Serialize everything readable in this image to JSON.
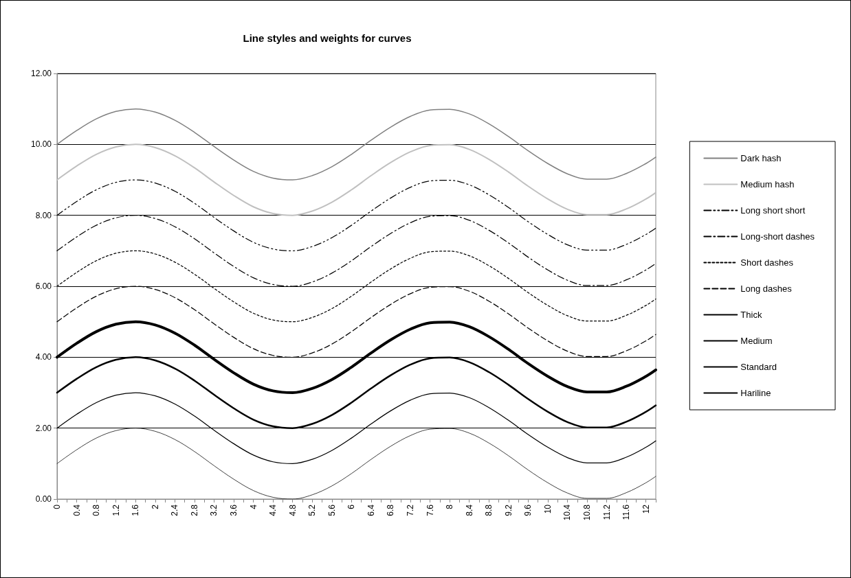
{
  "chart_data": {
    "type": "line",
    "title": "Line styles and weights for curves",
    "x": [
      0,
      0.4,
      0.8,
      1.2,
      1.6,
      2,
      2.4,
      2.8,
      3.2,
      3.6,
      4,
      4.4,
      4.8,
      5.2,
      5.6,
      6,
      6.4,
      6.8,
      7.2,
      7.6,
      8,
      8.4,
      8.8,
      9.2,
      9.6,
      10,
      10.4,
      10.8,
      11.2,
      11.6,
      12,
      12.2
    ],
    "xlim": [
      0,
      12.2
    ],
    "xticks": [
      0,
      {
        "value": 0.2,
        "label": null
      },
      0.4,
      {
        "value": 0.6,
        "label": null
      },
      0.8,
      {
        "value": 1,
        "label": null
      },
      1.2,
      {
        "value": 1.4,
        "label": null
      },
      1.6,
      {
        "value": 1.8,
        "label": null
      },
      2,
      {
        "value": 2.2,
        "label": null
      },
      2.4,
      {
        "value": 2.6,
        "label": null
      },
      2.8,
      {
        "value": 3,
        "label": null
      },
      3.2,
      {
        "value": 3.4,
        "label": null
      },
      3.6,
      {
        "value": 3.8,
        "label": null
      },
      4,
      {
        "value": 4.2,
        "label": null
      },
      4.4,
      {
        "value": 4.6,
        "label": null
      },
      4.8,
      {
        "value": 5,
        "label": null
      },
      5.2,
      {
        "value": 5.4,
        "label": null
      },
      5.6,
      {
        "value": 5.8,
        "label": null
      },
      6,
      {
        "value": 6.2,
        "label": null
      },
      6.4,
      {
        "value": 6.6,
        "label": null
      },
      6.8,
      {
        "value": 7,
        "label": null
      },
      7.2,
      {
        "value": 7.4,
        "label": null
      },
      7.6,
      {
        "value": 7.8,
        "label": null
      },
      8,
      {
        "value": 8.2,
        "label": null
      },
      8.4,
      {
        "value": 8.6,
        "label": null
      },
      8.8,
      {
        "value": 9,
        "label": null
      },
      9.2,
      {
        "value": 9.4,
        "label": null
      },
      9.6,
      {
        "value": 9.8,
        "label": null
      },
      10,
      {
        "value": 10.2,
        "label": null
      },
      10.4,
      {
        "value": 10.6,
        "label": null
      },
      10.8,
      {
        "value": 11,
        "label": null
      },
      11.2,
      {
        "value": 11.4,
        "label": null
      },
      11.6,
      {
        "value": 11.8,
        "label": null
      },
      12,
      {
        "value": 12.2,
        "label": null
      }
    ],
    "ylim": [
      0,
      12
    ],
    "yticks": [
      {
        "value": 0,
        "label": "0.00"
      },
      {
        "value": 2,
        "label": "2.00"
      },
      {
        "value": 4,
        "label": "4.00"
      },
      {
        "value": 6,
        "label": "6.00"
      },
      {
        "value": 8,
        "label": "8.00"
      },
      {
        "value": 10,
        "label": "10.00"
      },
      {
        "value": 12,
        "label": "12.00"
      }
    ],
    "grid": "y",
    "legend": "right",
    "marker": "none",
    "series": [
      {
        "name": "Dark hash",
        "color": "#808080",
        "line_style": "solid",
        "values": [
          10,
          10.39,
          10.72,
          10.93,
          11,
          10.91,
          10.68,
          10.34,
          9.94,
          9.56,
          9.24,
          9.05,
          9,
          9.12,
          9.37,
          9.72,
          10.12,
          10.49,
          10.79,
          10.97,
          10.99,
          10.86,
          10.58,
          10.22,
          9.82,
          9.46,
          9.17,
          9.02,
          9.02,
          9.18,
          9.46,
          9.64
        ]
      },
      {
        "name": "Medium hash",
        "color": "#c0c0c0",
        "line_style": "solid",
        "values": [
          9,
          9.39,
          9.72,
          9.93,
          10,
          9.91,
          9.68,
          9.34,
          8.94,
          8.56,
          8.24,
          8.05,
          8,
          8.12,
          8.37,
          8.72,
          9.12,
          9.49,
          9.79,
          9.97,
          9.99,
          9.86,
          9.58,
          9.22,
          8.82,
          8.46,
          8.17,
          8.02,
          8.02,
          8.18,
          8.46,
          8.64
        ]
      },
      {
        "name": "Long short short",
        "color": "#000000",
        "line_style": "dashdotdot",
        "values": [
          8,
          8.39,
          8.72,
          8.93,
          9,
          8.91,
          8.68,
          8.34,
          7.94,
          7.56,
          7.24,
          7.05,
          7,
          7.12,
          7.37,
          7.72,
          8.12,
          8.49,
          8.79,
          8.97,
          8.99,
          8.86,
          8.58,
          8.22,
          7.82,
          7.46,
          7.17,
          7.02,
          7.02,
          7.18,
          7.46,
          7.64
        ]
      },
      {
        "name": "Long-short dashes",
        "color": "#000000",
        "line_style": "dashdot",
        "values": [
          7,
          7.39,
          7.72,
          7.93,
          8,
          7.91,
          7.68,
          7.34,
          6.94,
          6.56,
          6.24,
          6.05,
          6,
          6.12,
          6.37,
          6.72,
          7.12,
          7.49,
          7.79,
          7.97,
          7.99,
          7.86,
          7.58,
          7.22,
          6.82,
          6.46,
          6.17,
          6.02,
          6.02,
          6.18,
          6.46,
          6.64
        ]
      },
      {
        "name": "Short dashes",
        "color": "#000000",
        "line_style": "dotted",
        "values": [
          6,
          6.39,
          6.72,
          6.93,
          7,
          6.91,
          6.68,
          6.34,
          5.94,
          5.56,
          5.24,
          5.05,
          5,
          5.12,
          5.37,
          5.72,
          6.12,
          6.49,
          6.79,
          6.97,
          6.99,
          6.86,
          6.58,
          6.22,
          5.82,
          5.46,
          5.17,
          5.02,
          5.02,
          5.18,
          5.46,
          5.64
        ]
      },
      {
        "name": "Long dashes",
        "color": "#000000",
        "line_style": "dashed",
        "values": [
          5,
          5.39,
          5.72,
          5.93,
          6,
          5.91,
          5.68,
          5.34,
          4.94,
          4.56,
          4.24,
          4.05,
          4,
          4.12,
          4.37,
          4.72,
          5.12,
          5.49,
          5.79,
          5.97,
          5.99,
          5.86,
          5.58,
          5.22,
          4.82,
          4.46,
          4.17,
          4.02,
          4.02,
          4.18,
          4.46,
          4.64
        ]
      },
      {
        "name": "Thick",
        "color": "#000000",
        "line_style": "solid",
        "values": [
          4,
          4.39,
          4.72,
          4.93,
          5,
          4.91,
          4.68,
          4.34,
          3.94,
          3.56,
          3.24,
          3.05,
          3,
          3.12,
          3.37,
          3.72,
          4.12,
          4.49,
          4.79,
          4.97,
          4.99,
          4.86,
          4.58,
          4.22,
          3.82,
          3.46,
          3.17,
          3.02,
          3.02,
          3.18,
          3.46,
          3.64
        ]
      },
      {
        "name": "Medium",
        "color": "#000000",
        "line_style": "solid",
        "values": [
          3,
          3.39,
          3.72,
          3.93,
          4,
          3.91,
          3.68,
          3.34,
          2.94,
          2.56,
          2.24,
          2.05,
          2,
          2.12,
          2.37,
          2.72,
          3.12,
          3.49,
          3.79,
          3.97,
          3.99,
          3.86,
          3.58,
          3.22,
          2.82,
          2.46,
          2.17,
          2.02,
          2.02,
          2.18,
          2.46,
          2.64
        ]
      },
      {
        "name": "Standard",
        "color": "#000000",
        "line_style": "solid",
        "values": [
          2,
          2.39,
          2.72,
          2.93,
          3,
          2.91,
          2.68,
          2.34,
          1.94,
          1.56,
          1.24,
          1.05,
          1,
          1.12,
          1.37,
          1.72,
          2.12,
          2.49,
          2.79,
          2.97,
          2.99,
          2.86,
          2.58,
          2.22,
          1.82,
          1.46,
          1.17,
          1.02,
          1.02,
          1.18,
          1.46,
          1.64
        ]
      },
      {
        "name": "Hariline",
        "color": "#000000",
        "line_style": "solid",
        "values": [
          1,
          1.39,
          1.72,
          1.93,
          2,
          1.91,
          1.68,
          1.34,
          0.94,
          0.56,
          0.24,
          0.05,
          0,
          0.12,
          0.37,
          0.72,
          1.12,
          1.49,
          1.79,
          1.97,
          1.99,
          1.86,
          1.58,
          1.22,
          0.82,
          0.46,
          0.17,
          0.02,
          0.02,
          0.18,
          0.46,
          0.64
        ]
      }
    ]
  }
}
